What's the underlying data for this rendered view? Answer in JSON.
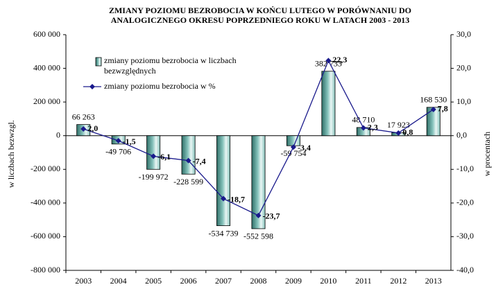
{
  "chart_data": {
    "type": "bar",
    "title": [
      "ZMIANY POZIOMU BEZROBOCIA W  KOŃCU LUTEGO W PORÓWNANIU DO",
      "ANALOGICZNEGO OKRESU POPRZEDNIEGO ROKU   W LATACH  2003 - 2013"
    ],
    "y_label": "w liczbach bezwzgl.",
    "y2_label": "w procentach",
    "categories": [
      "2003",
      "2004",
      "2005",
      "2006",
      "2007",
      "2008",
      "2009",
      "2010",
      "2011",
      "2012",
      "2013"
    ],
    "series": [
      {
        "name": "zmiany poziomu bezrobocia w liczbach bezwzględnych",
        "type": "bar",
        "color": "#86c3bc",
        "values": [
          66263,
          -49706,
          -199972,
          -228599,
          -534739,
          -552598,
          -59754,
          382733,
          48710,
          17923,
          168530
        ],
        "value_labels": [
          "66 263",
          "-49 706",
          "-199 972",
          "-228 599",
          "-534 739",
          "-552 598",
          "-59 754",
          "382 733",
          "48 710",
          "17 923",
          "168 530"
        ]
      },
      {
        "name": "zmiany poziomu bezrobocia w %",
        "type": "line",
        "axis": "y2",
        "color": "#1a1a8c",
        "values": [
          2.0,
          -1.5,
          -6.1,
          -7.4,
          -18.7,
          -23.7,
          -3.4,
          22.3,
          2.3,
          0.8,
          7.8
        ],
        "value_labels": [
          "2,0",
          "-1,5",
          "-6,1",
          "-7,4",
          "-18,7",
          "-23,7",
          "-3,4",
          "22,3",
          "2,3",
          "0,8",
          "7,8"
        ]
      }
    ],
    "ylim": [
      -800000,
      600000
    ],
    "yticks": [
      {
        "value": -800000,
        "label": "-800 000"
      },
      {
        "value": -600000,
        "label": "-600 000"
      },
      {
        "value": -400000,
        "label": "-400 000"
      },
      {
        "value": -200000,
        "label": "-200 000"
      },
      0,
      {
        "value": 200000,
        "label": "200 000"
      },
      {
        "value": 400000,
        "label": "400 000"
      },
      {
        "value": 600000,
        "label": "600 000"
      }
    ],
    "y2lim": [
      -40,
      30
    ],
    "y2ticks": [
      {
        "value": -40,
        "label": "-40,0"
      },
      {
        "value": -30,
        "label": "-30,0"
      },
      {
        "value": -20,
        "label": "-20,0"
      },
      {
        "value": -10,
        "label": "-10,0"
      },
      {
        "value": 0,
        "label": "0,0"
      },
      {
        "value": 10,
        "label": "10,0"
      },
      {
        "value": 20,
        "label": "20,0"
      },
      {
        "value": 30,
        "label": "30,0"
      }
    ]
  }
}
